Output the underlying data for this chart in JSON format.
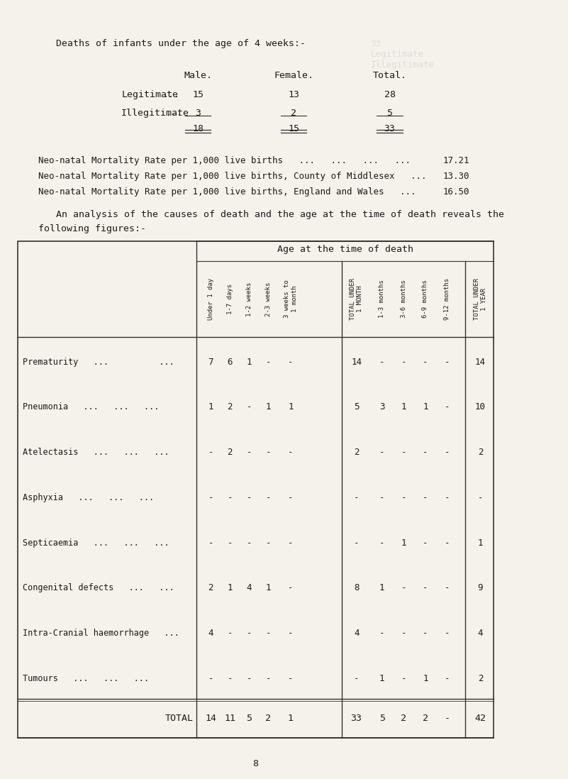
{
  "bg_color": "#f5f2eb",
  "title_line": "Deaths of infants under the age of 4 weeks:-",
  "top_table": {
    "headers": [
      "",
      "Male.",
      "Female.",
      "Total."
    ],
    "rows": [
      [
        "Legitimate   ...",
        "15",
        "13",
        "28"
      ],
      [
        "Illegitimate   ...",
        "3",
        "2",
        "5"
      ],
      [
        "",
        "18",
        "15",
        "33"
      ]
    ]
  },
  "mortality_lines": [
    [
      "Neo-natal Mortality Rate per 1,000 live births   ...   ...   ...   ...",
      "17.21"
    ],
    [
      "Neo-natal Mortality Rate per 1,000 live births, County of Middlesex   ...",
      "13.30"
    ],
    [
      "Neo-natal Mortality Rate per 1,000 live births, England and Wales   ...",
      "16.50"
    ]
  ],
  "analysis_text": "An analysis of the causes of death and the age at the time of death reveals the following figures:-",
  "table_header_row1": "Age at the time of death",
  "col_headers": [
    "Under 1 day",
    "1-7 days",
    "1-2 weeks",
    "2-3 weeks",
    "3 weeks to\n1 month",
    "TOTAL UNDER\n1 MONTH",
    "1-3 months",
    "3-6 months",
    "6-9 months",
    "9-12 months",
    "TOTAL UNDER\n1 YEAR"
  ],
  "row_labels": [
    "Prematurity   ...          ...",
    "Pneumonia   ...   ...   ...",
    "Atelectasis   ...   ...   ...",
    "Asphyxia   ...   ...   ...",
    "Septicaemia   ...   ...   ...",
    "Congenital defects   ...   ...",
    "Intra-Cranial haemorrhage   ...",
    "Tumours   ...   ...   ..."
  ],
  "table_data": [
    [
      "7",
      "6",
      "1",
      "-",
      "-",
      "14",
      "-",
      "-",
      "-",
      "-",
      "14"
    ],
    [
      "1",
      "2",
      "-",
      "1",
      "1",
      "5",
      "3",
      "1",
      "1",
      "-",
      "10"
    ],
    [
      "-",
      "2",
      "-",
      "-",
      "-",
      "2",
      "-",
      "-",
      "-",
      "-",
      "2"
    ],
    [
      "-",
      "-",
      "-",
      "-",
      "-",
      "-",
      "-",
      "-",
      "-",
      "-",
      "-"
    ],
    [
      "-",
      "-",
      "-",
      "-",
      "-",
      "-",
      "-",
      "1",
      "-",
      "-",
      "1"
    ],
    [
      "2",
      "1",
      "4",
      "1",
      "-",
      "8",
      "1",
      "-",
      "-",
      "-",
      "9"
    ],
    [
      "4",
      "-",
      "-",
      "-",
      "-",
      "4",
      "-",
      "-",
      "-",
      "-",
      "4"
    ],
    [
      "-",
      "-",
      "-",
      "-",
      "-",
      "-",
      "1",
      "-",
      "1",
      "-",
      "2"
    ]
  ],
  "total_row": [
    "14",
    "11",
    "5",
    "2",
    "1",
    "33",
    "5",
    "2",
    "2",
    "-",
    "42"
  ],
  "page_number": "8"
}
